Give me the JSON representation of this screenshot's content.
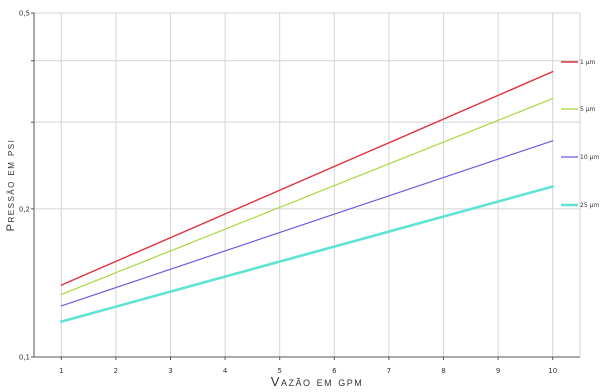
{
  "chart_data": {
    "type": "line",
    "xlabel": "Vazão em gpm",
    "ylabel": "Pressão em psi",
    "x": [
      1,
      10
    ],
    "x_ticks": [
      "1",
      "2",
      "3",
      "4",
      "5",
      "6",
      "7",
      "8",
      "9",
      "10"
    ],
    "xlim": [
      0.5,
      10.5
    ],
    "ylim": [
      0.1,
      0.5
    ],
    "y_scale": "log",
    "y_tick_values": [
      0.1,
      0.2,
      0.3,
      0.4,
      0.5
    ],
    "y_ticks": [
      "0,1",
      "0,2",
      "",
      "",
      "0,5"
    ],
    "grid": true,
    "legend_position": "right",
    "series": [
      {
        "name": "1 µm",
        "values": [
          0.14,
          0.38
        ],
        "color": "#e0303c"
      },
      {
        "name": "5 µm",
        "values": [
          0.134,
          0.335
        ],
        "color": "#a6d83a"
      },
      {
        "name": "10 µm",
        "values": [
          0.127,
          0.275
        ],
        "color": "#6b5ce0"
      },
      {
        "name": "25 µm",
        "values": [
          0.118,
          0.222
        ],
        "color": "#5fe3d3"
      }
    ]
  }
}
